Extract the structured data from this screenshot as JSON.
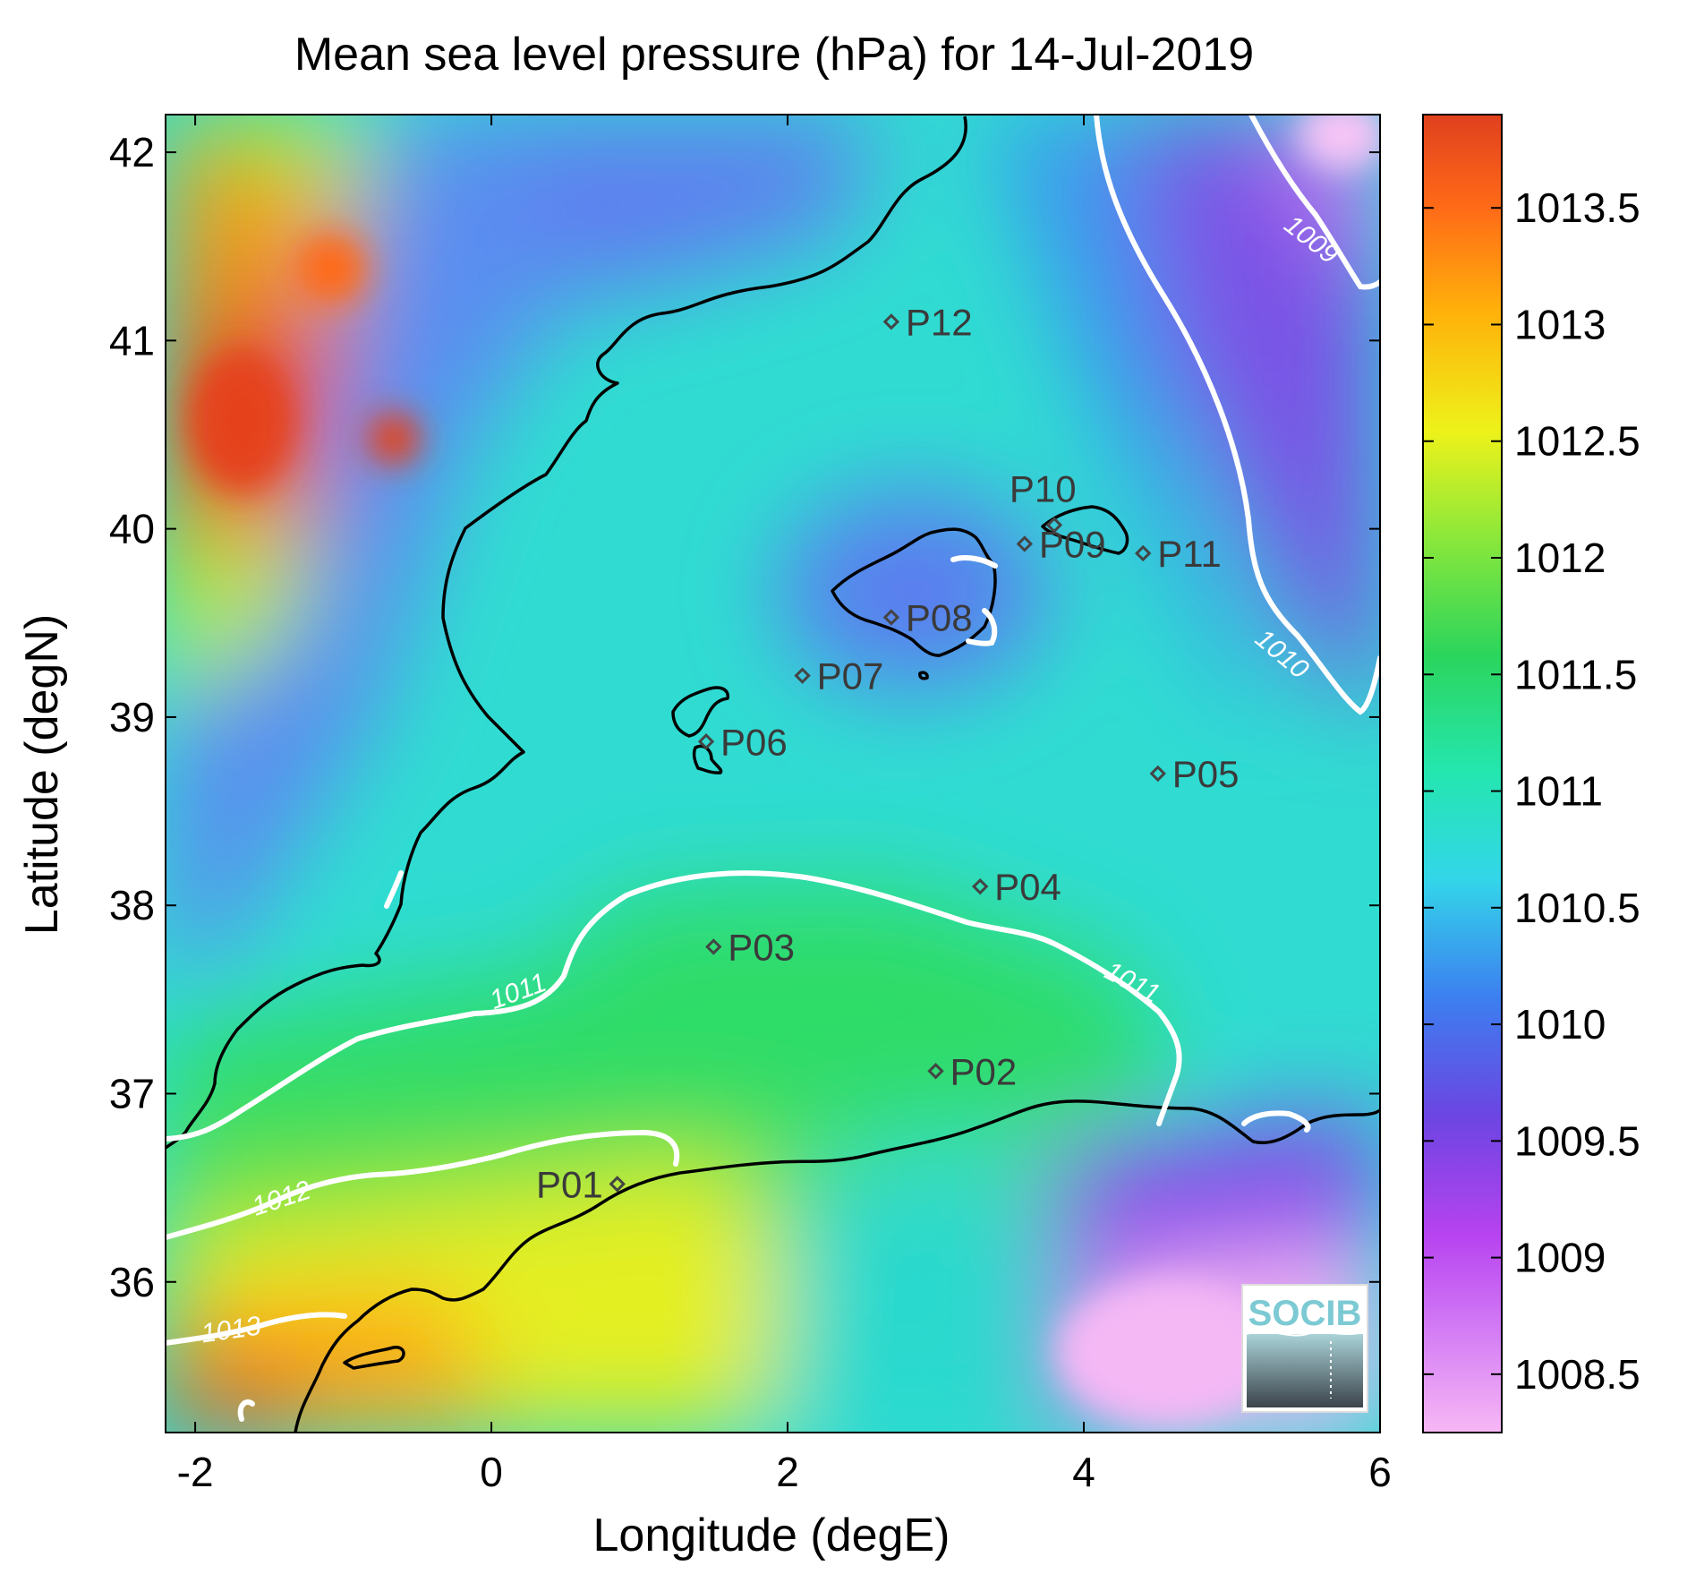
{
  "title": "Mean sea level pressure (hPa) for 14-Jul-2019",
  "xaxis": {
    "label": "Longitude (degE)",
    "range": [
      -2.2,
      6.0
    ],
    "ticks": [
      -2,
      0,
      2,
      4,
      6
    ],
    "tick_labels": [
      "-2",
      "0",
      "2",
      "4",
      "6"
    ]
  },
  "yaxis": {
    "label": "Latitude (degN)",
    "range": [
      35.2,
      42.2
    ],
    "ticks": [
      36,
      37,
      38,
      39,
      40,
      41,
      42
    ],
    "tick_labels": [
      "36",
      "37",
      "38",
      "39",
      "40",
      "41",
      "42"
    ]
  },
  "colorbar": {
    "range": [
      1008.25,
      1013.9
    ],
    "ticks": [
      1008.5,
      1009,
      1009.5,
      1010,
      1010.5,
      1011,
      1011.5,
      1012,
      1012.5,
      1013,
      1013.5
    ],
    "tick_labels": [
      "1008.5",
      "1009",
      "1009.5",
      "1010",
      "1010.5",
      "1011",
      "1011.5",
      "1012",
      "1012.5",
      "1013",
      "1013.5"
    ],
    "colors": [
      "#f7b8f5",
      "#b743f0",
      "#6c45e2",
      "#3c7ff0",
      "#33d6e9",
      "#24e6b0",
      "#2bd55c",
      "#8ce83a",
      "#eef21a",
      "#ffb10a",
      "#ff6a18",
      "#e0401e"
    ]
  },
  "stations": [
    {
      "name": "P01",
      "lon": 0.85,
      "lat": 36.52
    },
    {
      "name": "P02",
      "lon": 3.0,
      "lat": 37.12
    },
    {
      "name": "P03",
      "lon": 1.5,
      "lat": 37.78
    },
    {
      "name": "P04",
      "lon": 3.3,
      "lat": 38.1
    },
    {
      "name": "P05",
      "lon": 4.5,
      "lat": 38.7
    },
    {
      "name": "P06",
      "lon": 1.45,
      "lat": 38.87
    },
    {
      "name": "P07",
      "lon": 2.1,
      "lat": 39.22
    },
    {
      "name": "P08",
      "lon": 2.7,
      "lat": 39.53
    },
    {
      "name": "P09",
      "lon": 3.6,
      "lat": 39.92
    },
    {
      "name": "P10",
      "lon": 3.8,
      "lat": 40.02
    },
    {
      "name": "P11",
      "lon": 4.4,
      "lat": 39.87
    },
    {
      "name": "P12",
      "lon": 2.7,
      "lat": 41.1
    }
  ],
  "contour_labels": [
    {
      "text": "1009",
      "lon": 5.5,
      "lat": 41.5,
      "angle": 38
    },
    {
      "text": "1010",
      "lon": 5.3,
      "lat": 39.3,
      "angle": 40
    },
    {
      "text": "1011",
      "lon": 0.2,
      "lat": 37.5,
      "angle": -20
    },
    {
      "text": "1011",
      "lon": 4.3,
      "lat": 37.55,
      "angle": 28
    },
    {
      "text": "1012",
      "lon": -1.4,
      "lat": 36.4,
      "angle": -18
    },
    {
      "text": "1013",
      "lon": -1.75,
      "lat": 35.7,
      "angle": -8
    }
  ],
  "logo": {
    "text": "SOCIB"
  },
  "chart_data": {
    "type": "heatmap",
    "title": "Mean sea level pressure (hPa) for 14-Jul-2019",
    "xlabel": "Longitude (degE)",
    "ylabel": "Latitude (degN)",
    "xlim": [
      -2.2,
      6.0
    ],
    "ylim": [
      35.2,
      42.2
    ],
    "value_range": [
      1008.25,
      1013.9
    ],
    "contour_levels": [
      1009,
      1010,
      1011,
      1012,
      1013
    ]
  }
}
